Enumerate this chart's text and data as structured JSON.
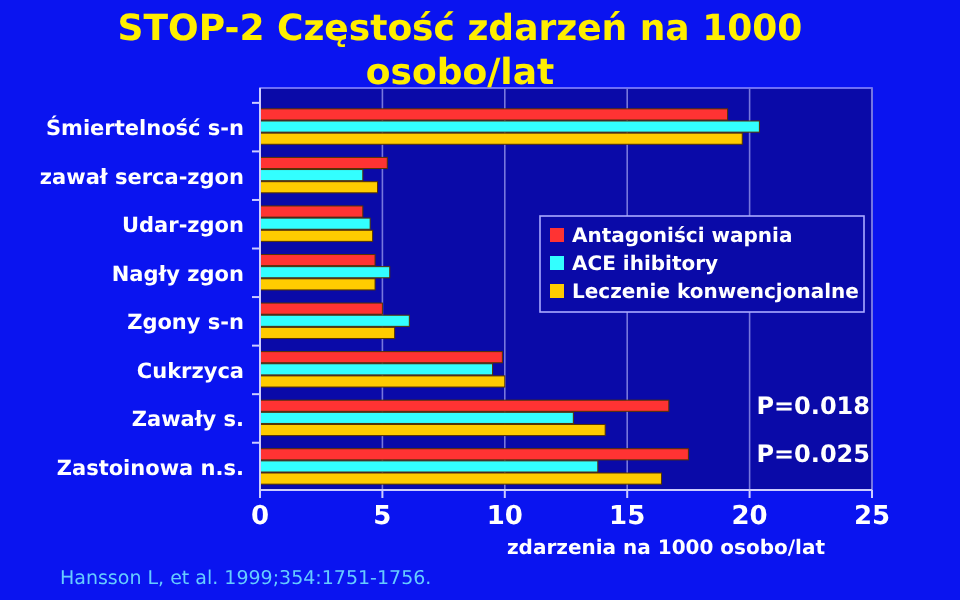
{
  "chart_data": {
    "type": "bar",
    "orientation": "horizontal",
    "title": "STOP-2 Częstość zdarzeń na 1000 osobo/lat",
    "xlabel": "zdarzenia na 1000 osobo/lat",
    "categories": [
      "Śmiertelność s-n",
      "zawał serca-zgon",
      "Udar-zgon",
      "Nagły zgon",
      "Zgony s-n",
      "Cukrzyca",
      "Zawały s.",
      "Zastoinowa n.s."
    ],
    "series": [
      {
        "name": "Antagoniści wapnia",
        "color": "#ff3333",
        "values": [
          19.1,
          5.2,
          4.2,
          4.7,
          5.0,
          9.9,
          16.7,
          17.5
        ]
      },
      {
        "name": "ACE ihibitory",
        "color": "#33ffff",
        "values": [
          20.4,
          4.2,
          4.5,
          5.3,
          6.1,
          9.5,
          12.8,
          13.8
        ]
      },
      {
        "name": "Leczenie konwencjonalne",
        "color": "#ffcc00",
        "values": [
          19.7,
          4.8,
          4.6,
          4.7,
          5.5,
          10.0,
          14.1,
          16.4
        ]
      }
    ],
    "xlim": [
      0,
      25
    ],
    "xticks": [
      0,
      5,
      10,
      15,
      20,
      25
    ],
    "grid": "x",
    "legend": "right",
    "annotations": [
      "P=0.018",
      "P=0.025",
      "Hansson L, et al. 1999;354:1751-1756."
    ]
  }
}
